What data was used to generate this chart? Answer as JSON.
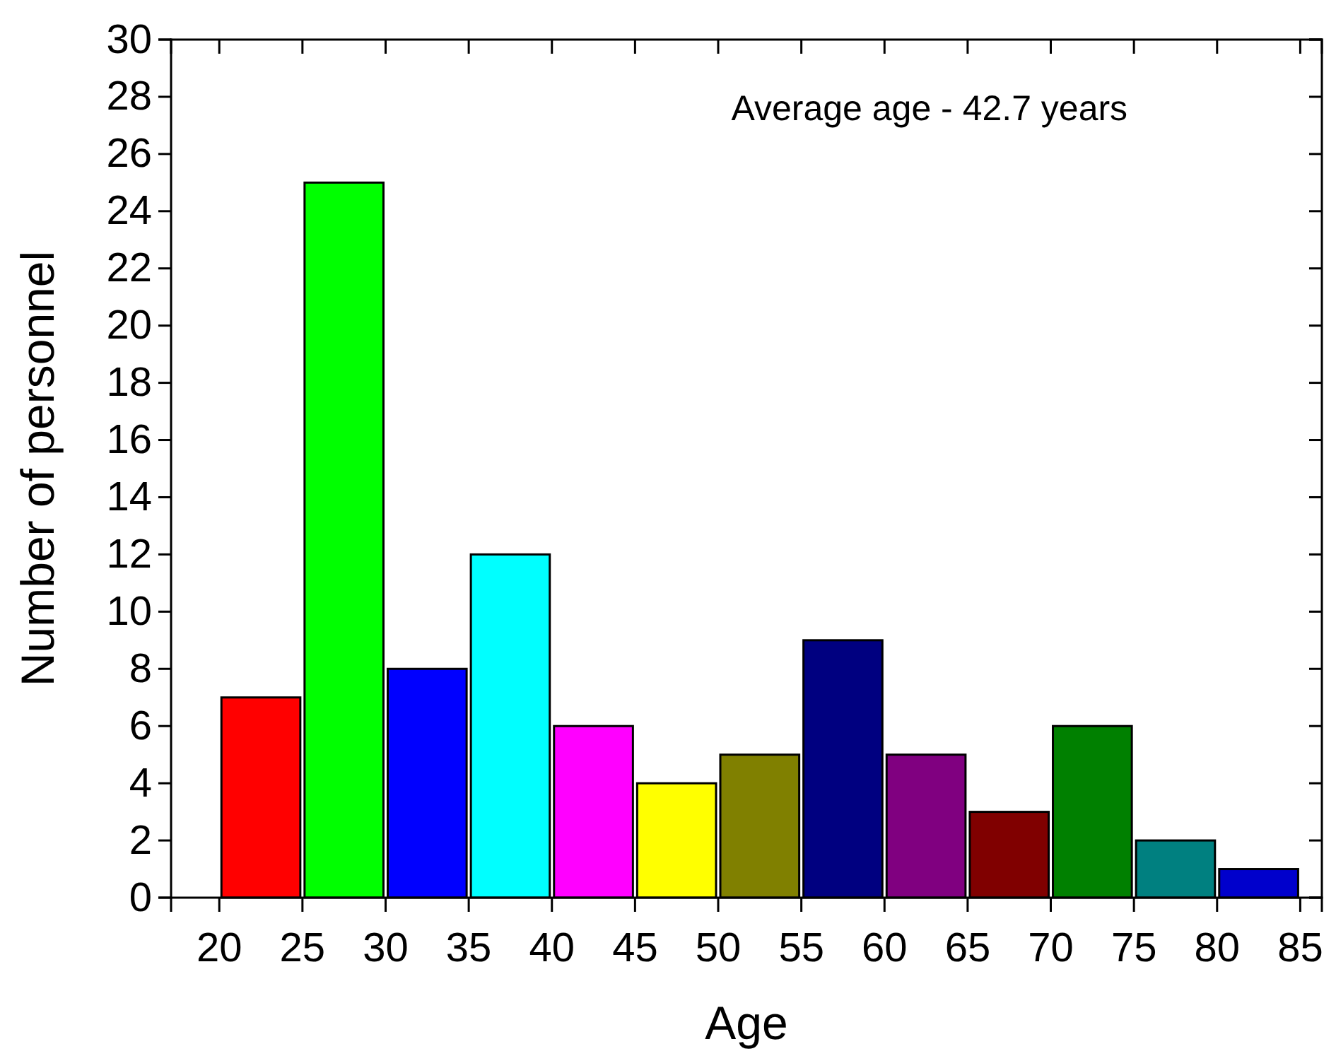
{
  "chart_data": {
    "type": "histogram",
    "xlabel": "Age",
    "ylabel": "Number of personnel",
    "bins": [
      20,
      25,
      30,
      35,
      40,
      45,
      50,
      55,
      60,
      65,
      70,
      75,
      80,
      85
    ],
    "values": [
      7,
      25,
      8,
      12,
      6,
      4,
      5,
      9,
      5,
      3,
      6,
      2,
      1
    ],
    "colors": [
      "#ff0000",
      "#00ff00",
      "#0000ff",
      "#00ffff",
      "#ff00ff",
      "#ffff00",
      "#808000",
      "#000080",
      "#800080",
      "#800000",
      "#008000",
      "#008080",
      "#0000cc"
    ],
    "xlim": [
      17.1,
      86.3
    ],
    "xticks": [
      20,
      25,
      30,
      35,
      40,
      45,
      50,
      55,
      60,
      65,
      70,
      75,
      80,
      85
    ],
    "ylim": [
      0,
      30
    ],
    "yticks": [
      0,
      2,
      4,
      6,
      8,
      10,
      12,
      14,
      16,
      18,
      20,
      22,
      24,
      26,
      28,
      30
    ],
    "annotations": [
      "Average age - 42.7 years"
    ],
    "grid": false
  }
}
